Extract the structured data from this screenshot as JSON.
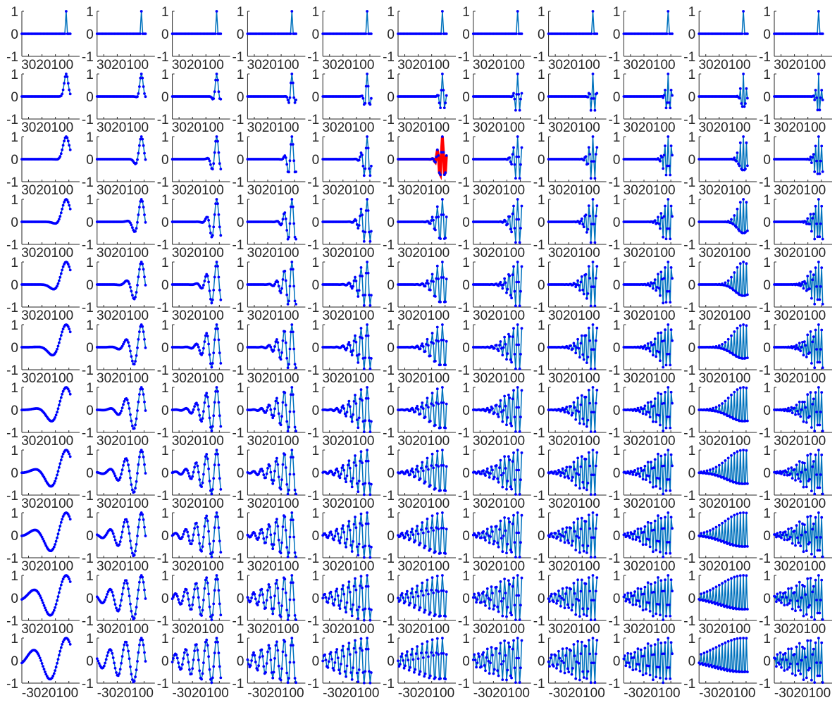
{
  "chart_data": {
    "type": "line",
    "title": "",
    "layout": "11 rows x 11 columns grid of small line plots with point markers",
    "rows": 11,
    "cols": 11,
    "xlim": [
      -35,
      8
    ],
    "ylim": [
      -1,
      1
    ],
    "x_ticks": [
      -30,
      -20,
      -10,
      0
    ],
    "x_tick_labels_printed": [
      "-30",
      "20",
      "100"
    ],
    "x_tick_labels_composite_bottom": "-30 20 10 0",
    "y_ticks": [
      -1,
      0,
      1
    ],
    "y_tick_labels": [
      "-1",
      "0",
      "1"
    ],
    "grid": false,
    "legend": false,
    "series_description": "Each cell shows a sampled oscillatory response curve y = f(x); oscillation frequency increases with column index, the curve widens (more samples, longer tail) with row index. Top row shows a single narrow spike near x = 0.",
    "series_style": {
      "line_color": "#0072BD",
      "marker_color": "#0000FF",
      "marker": "dot"
    },
    "highlight": {
      "row": 3,
      "col": 6,
      "line_color": "#FF0000",
      "marker_color": "#0000FF",
      "note": "the curve in row 3, column 6 is drawn thick red"
    },
    "cell_frequencies_by_column": [
      0.04,
      0.085,
      0.13,
      0.175,
      0.22,
      0.265,
      0.31,
      0.355,
      0.4,
      0.445,
      0.49
    ],
    "cell_widths_by_row": [
      0.9,
      2.2,
      4,
      6,
      8.5,
      11,
      14,
      17,
      20,
      24,
      28
    ]
  }
}
